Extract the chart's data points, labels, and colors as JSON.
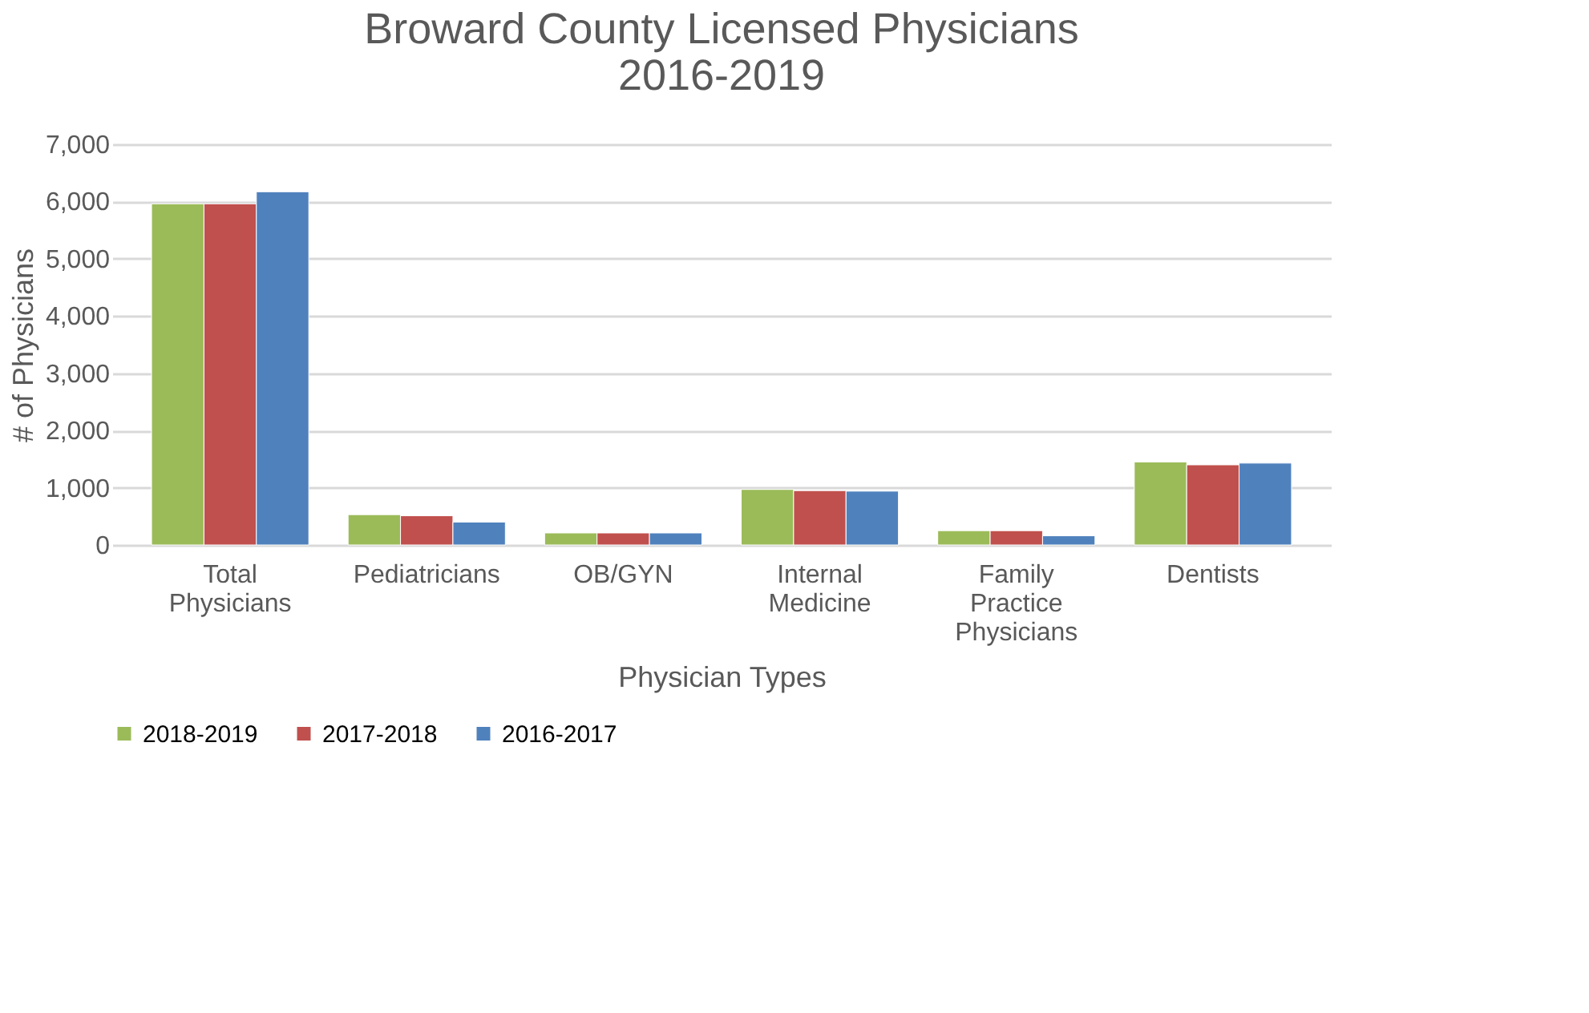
{
  "chart_data": {
    "type": "bar",
    "title": "Broward County Licensed Physicians\n2016-2019",
    "xlabel": "Physician Types",
    "ylabel": "# of Physicians",
    "categories": [
      "Total Physicians",
      "Pediatricians",
      "OB/GYN",
      "Internal Medicine",
      "Family Practice Physicians",
      "Dentists"
    ],
    "series": [
      {
        "name": "2018-2019",
        "color": "#9bbb59",
        "values": [
          5960,
          530,
          210,
          970,
          250,
          1450
        ]
      },
      {
        "name": "2017-2018",
        "color": "#c0504d",
        "values": [
          5960,
          510,
          210,
          950,
          250,
          1400
        ]
      },
      {
        "name": "2016-2017",
        "color": "#4f81bd",
        "values": [
          6170,
          400,
          210,
          940,
          160,
          1430
        ]
      }
    ],
    "ylim": [
      0,
      7000
    ],
    "yticks": [
      0,
      {
        "value": 1000,
        "label": "1,000"
      },
      {
        "value": 2000,
        "label": "2,000"
      },
      {
        "value": 3000,
        "label": "3,000"
      },
      {
        "value": 4000,
        "label": "4,000"
      },
      {
        "value": 5000,
        "label": "5,000"
      },
      {
        "value": 6000,
        "label": "6,000"
      },
      {
        "value": 7000,
        "label": "7,000"
      }
    ],
    "grid": "y",
    "legend": "bottom"
  }
}
